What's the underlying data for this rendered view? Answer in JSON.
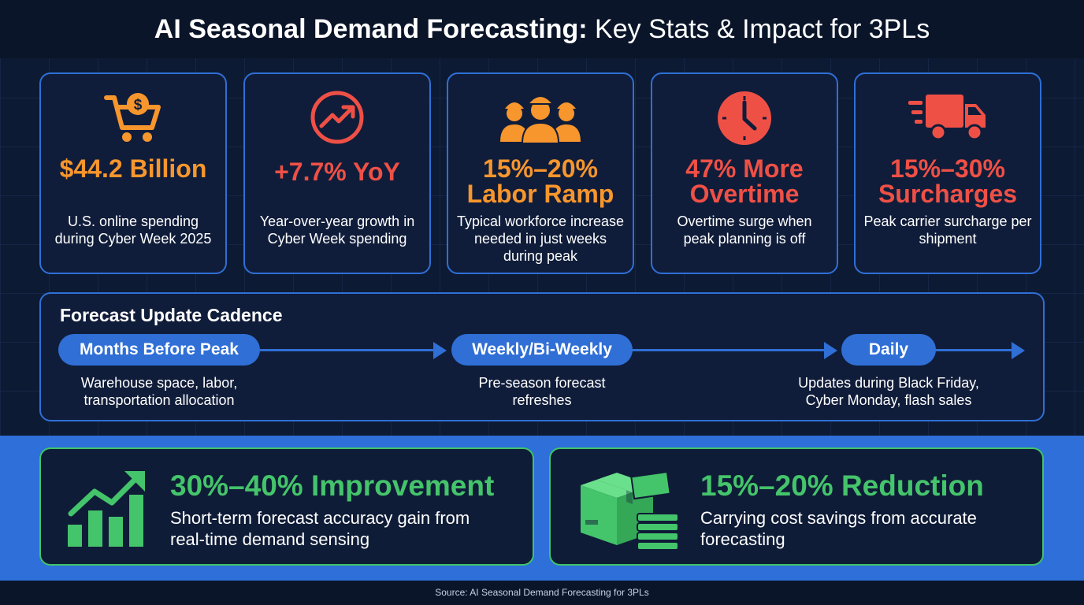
{
  "header": {
    "title_bold": "AI Seasonal Demand Forecasting:",
    "title_rest": "Key Stats & Impact for 3PLs"
  },
  "stats": [
    {
      "icon": "shopping-cart-dollar-icon",
      "value": "$44.2 Billion",
      "desc": "U.S. online spending during Cyber Week 2025",
      "color": "#f7962d"
    },
    {
      "icon": "trend-up-circle-icon",
      "value": "+7.7% YoY",
      "desc": "Year-over-year growth in Cyber Week spending",
      "color": "#ef5046"
    },
    {
      "icon": "workers-hardhat-icon",
      "value": "15%–20% Labor Ramp",
      "desc": "Typical workforce increase needed in just weeks during peak",
      "color": "#f7962d"
    },
    {
      "icon": "clock-icon",
      "value": "47% More Overtime",
      "desc": "Overtime surge when peak planning is off",
      "color": "#ef5046"
    },
    {
      "icon": "delivery-truck-icon",
      "value": "15%–30% Surcharges",
      "desc": "Peak carrier surcharge per shipment",
      "color": "#ef5046"
    }
  ],
  "cadence": {
    "title": "Forecast Update Cadence",
    "steps": [
      {
        "label": "Months Before Peak",
        "desc": "Warehouse space, labor, transportation allocation"
      },
      {
        "label": "Weekly/Bi-Weekly",
        "desc": "Pre-season forecast refreshes"
      },
      {
        "label": "Daily",
        "desc": "Updates during Black Friday, Cyber Monday, flash sales"
      }
    ]
  },
  "results": [
    {
      "icon": "bar-chart-growth-icon",
      "value": "30%–40% Improvement",
      "desc": "Short-term forecast accuracy gain from real-time demand sensing"
    },
    {
      "icon": "boxes-cash-icon",
      "value": "15%–20% Reduction",
      "desc": "Carrying cost savings from accurate forecasting"
    }
  ],
  "colors": {
    "accent_blue": "#2f6fd6",
    "orange": "#f7962d",
    "red": "#ef5046",
    "green": "#44c46b"
  },
  "footer": {
    "source": "Source: AI Seasonal Demand Forecasting for 3PLs"
  }
}
